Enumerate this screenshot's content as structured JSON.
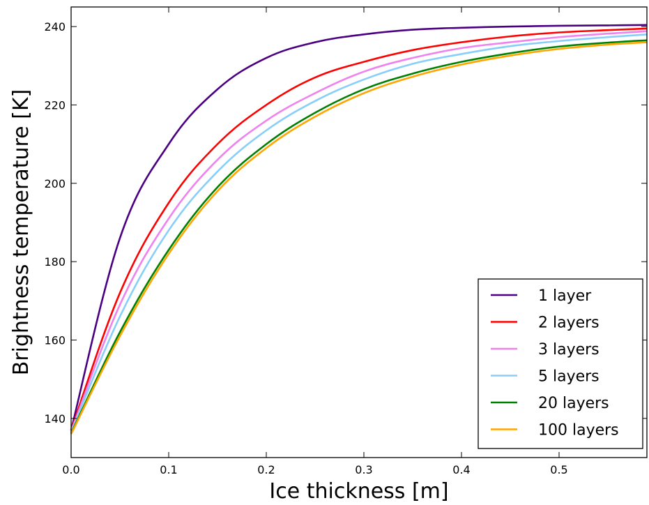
{
  "chart_data": {
    "type": "line",
    "xlabel": "Ice thickness [m]",
    "ylabel": "Brightness temperature [K]",
    "xlim": [
      0.0,
      0.59
    ],
    "ylim": [
      130,
      245
    ],
    "xticks": [
      0.0,
      0.1,
      0.2,
      0.3,
      0.4,
      0.5
    ],
    "xtick_labels": [
      "0.0",
      "0.1",
      "0.2",
      "0.3",
      "0.4",
      "0.5"
    ],
    "yticks": [
      140,
      160,
      180,
      200,
      220,
      240
    ],
    "ytick_labels": [
      "140",
      "160",
      "180",
      "200",
      "220",
      "240"
    ],
    "grid": false,
    "legend_position": "bottom-right",
    "x": [
      0.0,
      0.05,
      0.1,
      0.15,
      0.2,
      0.25,
      0.3,
      0.35,
      0.4,
      0.45,
      0.5,
      0.55,
      0.59
    ],
    "series": [
      {
        "name": "1 layer",
        "color": "#4b0082",
        "values": [
          137,
          186,
          210,
          224,
          232,
          236,
          238,
          239.2,
          239.7,
          240.0,
          240.2,
          240.3,
          240.4
        ]
      },
      {
        "name": "2 layers",
        "color": "#ff0000",
        "values": [
          137,
          172,
          195,
          210,
          220,
          227,
          231,
          234,
          236,
          237.5,
          238.5,
          239.1,
          239.5
        ]
      },
      {
        "name": "3 layers",
        "color": "#ee82ee",
        "values": [
          136.7,
          169,
          191,
          206,
          216,
          223,
          228.5,
          232,
          234.5,
          236,
          237.3,
          238.2,
          238.8
        ]
      },
      {
        "name": "5 layers",
        "color": "#87cefa",
        "values": [
          136.5,
          166,
          188,
          203,
          213.5,
          221,
          226.5,
          230.5,
          233,
          235,
          236.3,
          237.3,
          238
        ]
      },
      {
        "name": "20 layers",
        "color": "#008000",
        "values": [
          136.2,
          162,
          183,
          199,
          210,
          218,
          224,
          228,
          231,
          233.2,
          234.9,
          235.9,
          236.5
        ]
      },
      {
        "name": "100 layers",
        "color": "#ffa500",
        "values": [
          136,
          161,
          182,
          198,
          209,
          217,
          223,
          227.2,
          230.3,
          232.6,
          234.3,
          235.4,
          236
        ]
      }
    ]
  }
}
